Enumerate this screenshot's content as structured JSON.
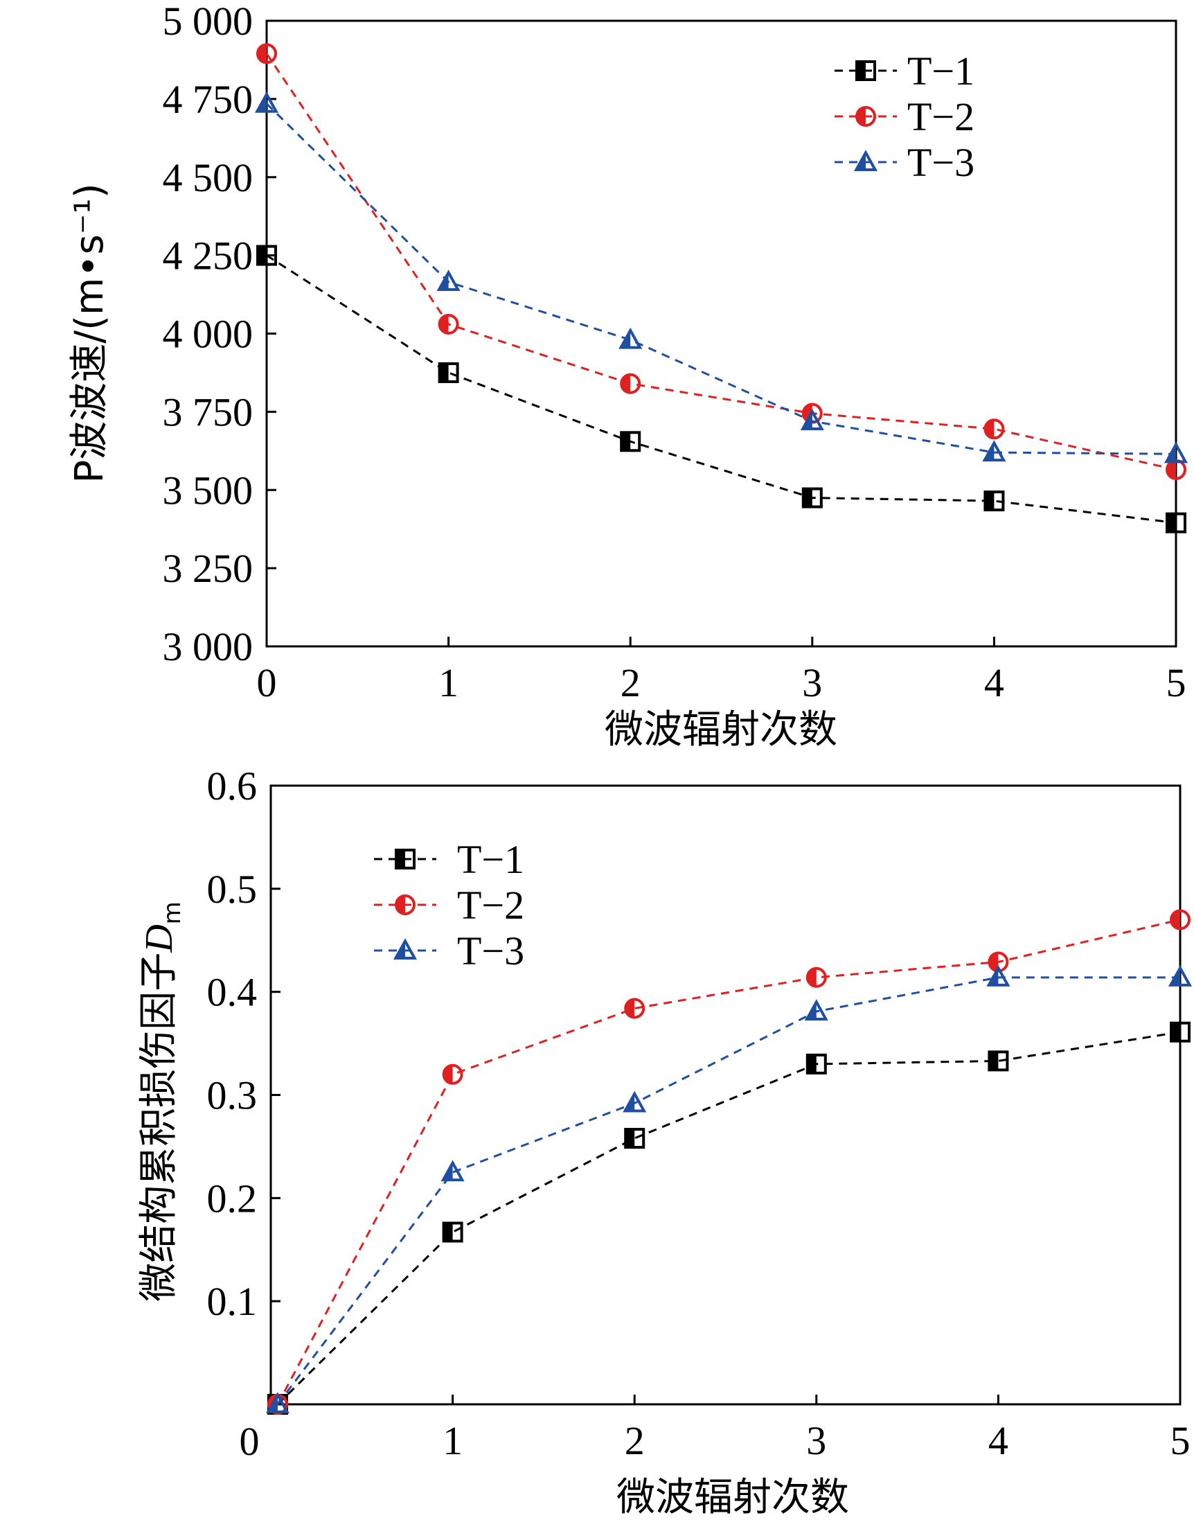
{
  "chart_data": [
    {
      "type": "line",
      "title": "",
      "xlabel": "微波辐射次数",
      "ylabel": "P波波速/(m•s⁻¹)",
      "x": [
        0,
        1,
        2,
        3,
        4,
        5
      ],
      "xticks": [
        "0",
        "1",
        "2",
        "3",
        "4",
        "5"
      ],
      "xlim": [
        0,
        5
      ],
      "ylim": [
        3000,
        5000
      ],
      "yticks": [
        3000,
        3250,
        3500,
        3750,
        4000,
        4250,
        4500,
        4750,
        5000
      ],
      "ytick_labels": [
        "3 000",
        "3 250",
        "3 500",
        "3 750",
        "4 000",
        "4 250",
        "4 500",
        "4 750",
        "5 000"
      ],
      "grid": false,
      "legend_position": "top-right",
      "series": [
        {
          "name": "T−1",
          "color": "#000000",
          "marker": "square-half",
          "values": [
            4250,
            3875,
            3655,
            3475,
            3465,
            3395
          ]
        },
        {
          "name": "T−2",
          "color": "#e02020",
          "marker": "circle-half",
          "values": [
            4895,
            4030,
            3840,
            3745,
            3695,
            3565
          ]
        },
        {
          "name": "T−3",
          "color": "#1f4fa0",
          "marker": "triangle-half",
          "values": [
            4735,
            4165,
            3980,
            3720,
            3620,
            3615
          ]
        }
      ]
    },
    {
      "type": "line",
      "title": "",
      "xlabel": "微波辐射次数",
      "ylabel": "微结构累积损伤因子",
      "ylabel_symbol": "D",
      "ylabel_subscript": "m",
      "x": [
        0,
        1,
        2,
        3,
        4,
        5
      ],
      "xticks": [
        "0",
        "1",
        "2",
        "3",
        "4",
        "5"
      ],
      "xlim": [
        0,
        5
      ],
      "ylim": [
        0,
        0.6
      ],
      "yticks": [
        0.1,
        0.2,
        0.3,
        0.4,
        0.5,
        0.6
      ],
      "ytick_labels": [
        "0.1",
        "0.2",
        "0.3",
        "0.4",
        "0.5",
        "0.6"
      ],
      "grid": false,
      "legend_position": "top-left",
      "series": [
        {
          "name": "T−1",
          "color": "#000000",
          "marker": "square-half",
          "values": [
            0,
            0.167,
            0.258,
            0.33,
            0.333,
            0.361
          ]
        },
        {
          "name": "T−2",
          "color": "#e02020",
          "marker": "circle-half",
          "values": [
            0,
            0.32,
            0.384,
            0.414,
            0.429,
            0.47
          ]
        },
        {
          "name": "T−3",
          "color": "#1f4fa0",
          "marker": "triangle-half",
          "values": [
            0,
            0.225,
            0.292,
            0.381,
            0.414,
            0.414
          ]
        }
      ]
    }
  ]
}
